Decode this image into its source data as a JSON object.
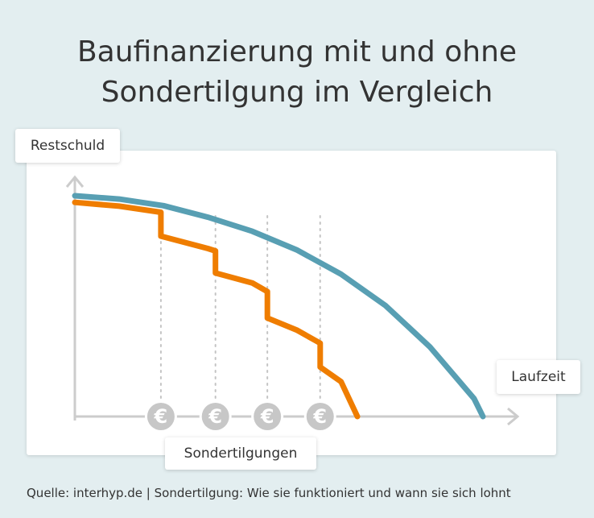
{
  "title_line1": "Baufinanzierung mit und ohne",
  "title_line2": "Sondertilgung im Vergleich",
  "source": "Quelle: interhyp.de | Sondertilgung: Wie sie funktioniert und wann sie sich lohnt",
  "colors": {
    "background": "#e3eef0",
    "without_sondertilgung": "#589fb3",
    "with_sondertilgung": "#ef7d00",
    "axis": "#cccccc",
    "euro_coin": "#c7c7c7"
  },
  "chart_data": {
    "type": "line",
    "title": "Baufinanzierung mit und ohne Sondertilgung im Vergleich",
    "ylabel": "Restschuld",
    "xlabel": "Laufzeit",
    "annotation": "Sondertilgungen",
    "marker_icon": "euro-icon",
    "xlim": [
      0,
      100
    ],
    "ylim": [
      0,
      100
    ],
    "grid": false,
    "series": [
      {
        "key": "without",
        "x": [
          0,
          10,
          20,
          30,
          40,
          50,
          60,
          70,
          80,
          90,
          92
        ],
        "y": [
          100,
          98.5,
          95.5,
          90.3,
          83.9,
          75.5,
          64.5,
          50.3,
          31.6,
          8.1,
          0
        ]
      },
      {
        "key": "with",
        "x": [
          0,
          10,
          19.4,
          19.4,
          30,
          31.7,
          31.7,
          40,
          43.4,
          43.4,
          50,
          55.3,
          55.3,
          60,
          63.7
        ],
        "y": [
          97,
          95.3,
          92.5,
          81.7,
          76.1,
          75.0,
          65.0,
          60.5,
          56.6,
          44.6,
          39.2,
          33.2,
          22.4,
          15.8,
          0
        ]
      }
    ],
    "sondertilgung_x": [
      19.4,
      31.7,
      43.4,
      55.3
    ]
  }
}
